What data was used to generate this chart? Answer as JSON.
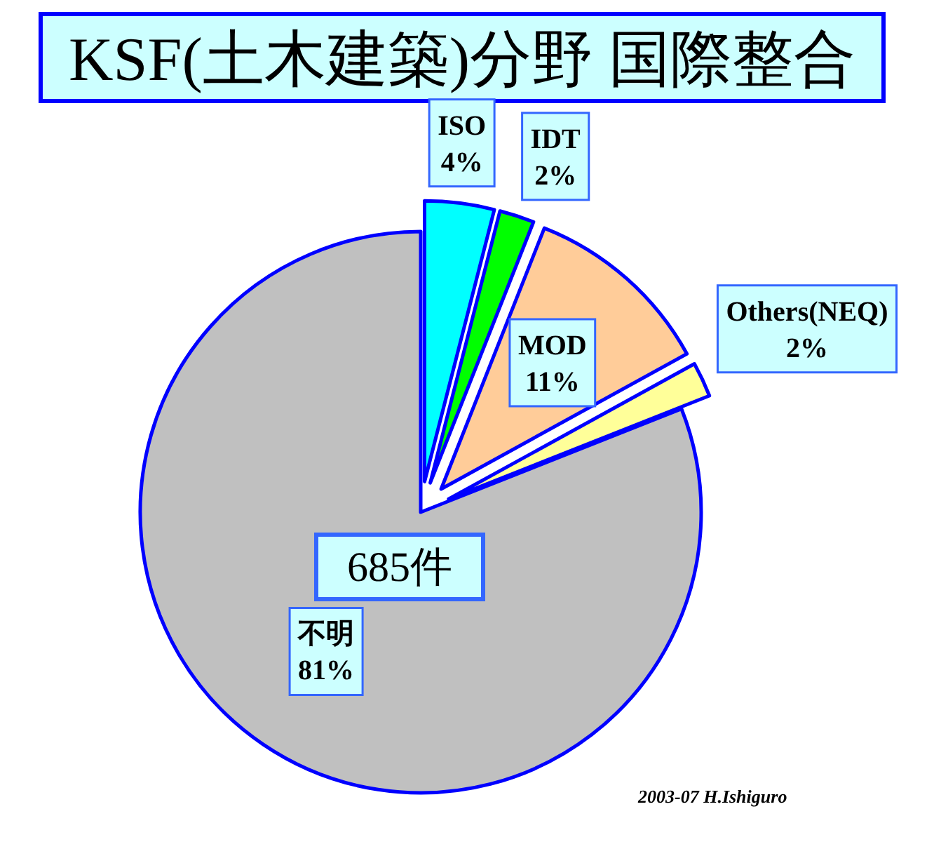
{
  "chart_data": {
    "type": "pie",
    "title": "KSF(土木建築)分野 国際整合",
    "categories": [
      "ISO",
      "IDT",
      "MOD",
      "Others(NEQ)",
      "不明"
    ],
    "values": [
      4,
      2,
      11,
      2,
      81
    ],
    "colors": [
      "#00ffff",
      "#00ff00",
      "#ffcc99",
      "#ffff99",
      "#c0c0c0"
    ],
    "value_labels": [
      "4%",
      "2%",
      "11%",
      "2%",
      "81%"
    ],
    "annotations": [
      "685件",
      "2003-07 H.Ishiguro"
    ]
  }
}
